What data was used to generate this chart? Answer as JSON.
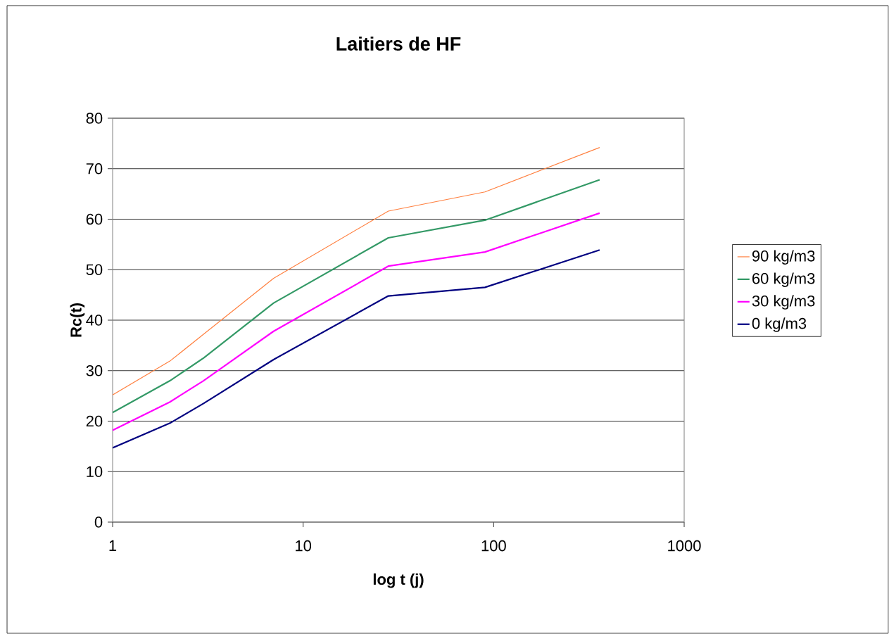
{
  "chart_data": {
    "type": "line",
    "title": "Laitiers de HF",
    "xlabel": "log t (j)",
    "ylabel": "Rc(t)",
    "x": [
      1,
      2,
      3,
      7,
      28,
      90,
      360
    ],
    "series": [
      {
        "name": "90 kg/m3",
        "color": "#ff8040",
        "values": [
          25.2,
          31.9,
          37.2,
          48.3,
          61.6,
          65.4,
          74.2
        ]
      },
      {
        "name": "60 kg/m3",
        "color": "#339966",
        "values": [
          21.7,
          28.0,
          32.5,
          43.4,
          56.3,
          59.8,
          67.8
        ]
      },
      {
        "name": "30 kg/m3",
        "color": "#ff00ff",
        "values": [
          18.2,
          23.8,
          28.0,
          37.8,
          50.7,
          53.5,
          61.2
        ]
      },
      {
        "name": "0 kg/m3",
        "color": "#000080",
        "values": [
          14.7,
          19.6,
          23.5,
          32.2,
          44.8,
          46.5,
          53.9
        ]
      }
    ],
    "log": "x",
    "xlim": [
      1,
      1000
    ],
    "xticks": [
      1,
      10,
      100,
      1000
    ],
    "ylim": [
      0,
      80
    ],
    "yticks": [
      0,
      10,
      20,
      30,
      40,
      50,
      60,
      70,
      80
    ],
    "grid": "y",
    "legend": "right",
    "marker": "none",
    "line_style": "solid"
  }
}
